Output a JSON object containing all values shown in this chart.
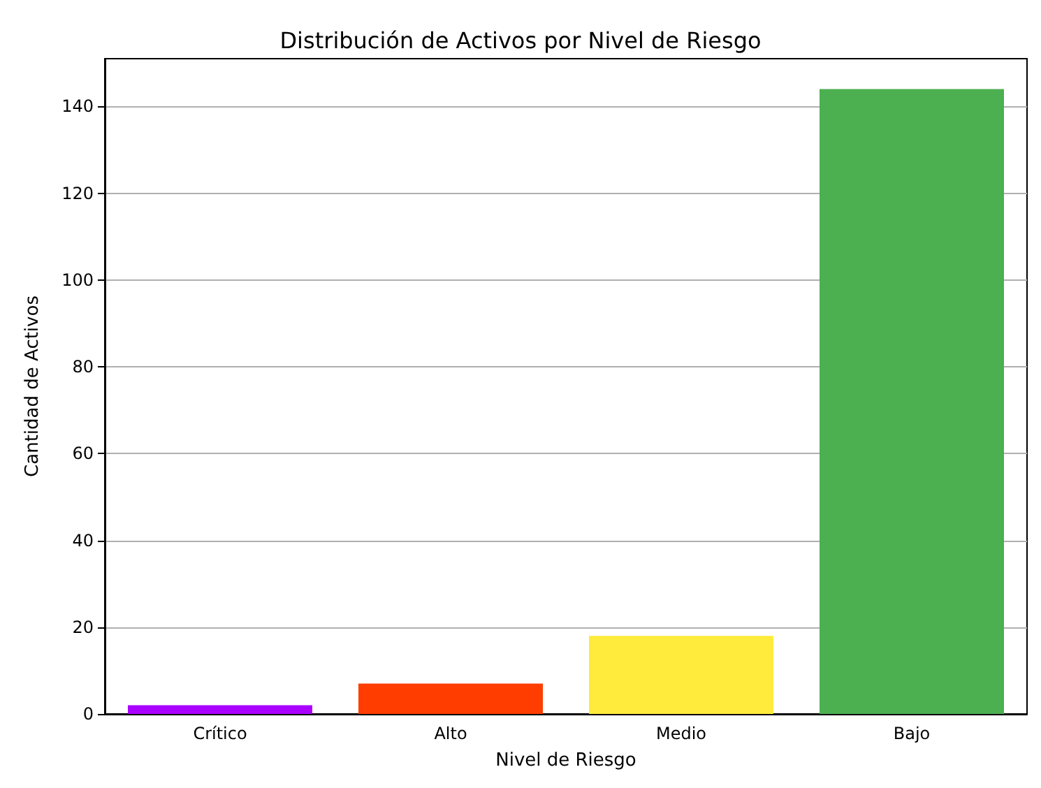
{
  "chart_data": {
    "type": "bar",
    "title": "Distribución de Activos por Nivel de Riesgo",
    "xlabel": "Nivel de Riesgo",
    "ylabel": "Cantidad de Activos",
    "categories": [
      "Crítico",
      "Alto",
      "Medio",
      "Bajo"
    ],
    "values": [
      2,
      7,
      18,
      144
    ],
    "colors": [
      "#aa00ff",
      "#ff3d00",
      "#ffeb3b",
      "#4caf50"
    ],
    "ylim": [
      0,
      151
    ],
    "yticks": [
      0,
      20,
      40,
      60,
      80,
      100,
      120,
      140
    ],
    "grid": "y"
  }
}
